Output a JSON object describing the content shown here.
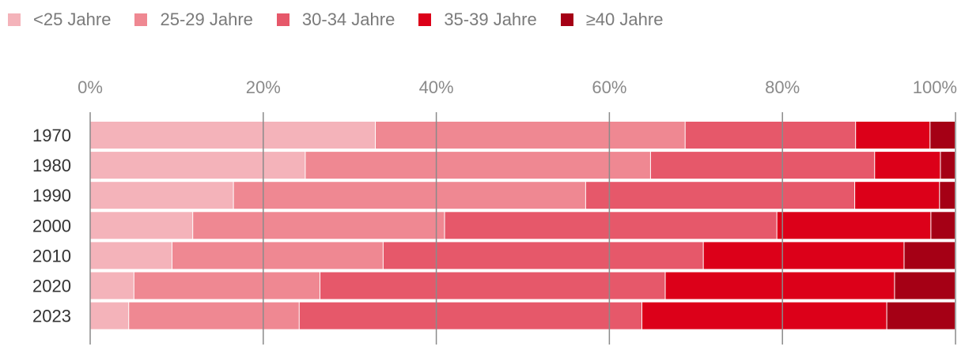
{
  "chart_data": {
    "type": "bar",
    "orientation": "horizontal",
    "stacked": true,
    "title": "",
    "xlabel": "",
    "ylabel": "",
    "xlim": [
      0,
      100
    ],
    "ticks": [
      "0%",
      "20%",
      "40%",
      "60%",
      "80%",
      "100%"
    ],
    "tick_values": [
      0,
      20,
      40,
      60,
      80,
      100
    ],
    "categories": [
      "1970",
      "1980",
      "1990",
      "2000",
      "2010",
      "2020",
      "2023"
    ],
    "series": [
      {
        "name": "<25 Jahre",
        "color": "#f4b3ba",
        "values": [
          33.0,
          24.9,
          16.6,
          11.9,
          9.5,
          5.1,
          4.5
        ]
      },
      {
        "name": "25-29 Jahre",
        "color": "#ef8892",
        "values": [
          35.8,
          39.9,
          40.7,
          29.1,
          24.4,
          21.5,
          19.7
        ]
      },
      {
        "name": "30-34 Jahre",
        "color": "#e6586a",
        "values": [
          19.7,
          25.9,
          31.1,
          38.4,
          37.0,
          39.9,
          39.6
        ]
      },
      {
        "name": "35-39 Jahre",
        "color": "#dc0019",
        "values": [
          8.6,
          7.6,
          9.8,
          17.8,
          23.2,
          26.5,
          28.3
        ]
      },
      {
        "name": "≥40 Jahre",
        "color": "#a50015",
        "values": [
          2.9,
          1.7,
          1.8,
          2.8,
          5.9,
          7.0,
          7.9
        ]
      }
    ],
    "legend": "top-left",
    "grid": true
  }
}
